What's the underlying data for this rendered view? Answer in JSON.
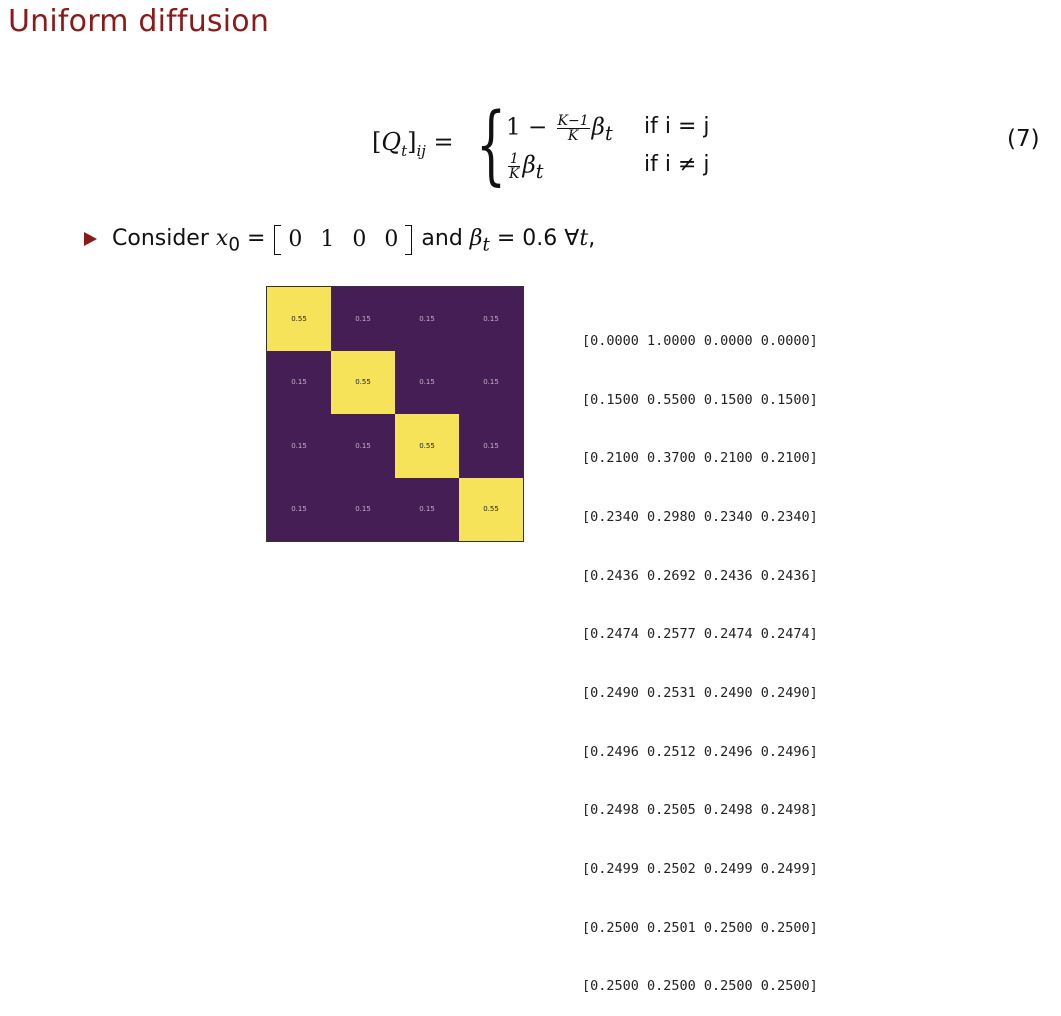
{
  "slide": {
    "title": "Uniform diffusion",
    "equation_number": "(7)",
    "title_color": "#8b1a1a"
  },
  "equation": {
    "lhs_bracket_open": "[",
    "lhs_Q": "Q",
    "lhs_t": "t",
    "lhs_bracket_close": "]",
    "lhs_ij": "ij",
    "equals": " = ",
    "case1_prefix": "1 − ",
    "case1_frac_num": "K−1",
    "case1_frac_den": "K",
    "case1_beta": "β",
    "case1_beta_sub": "t",
    "case2_frac_num": "1",
    "case2_frac_den": "K",
    "case2_beta": "β",
    "case2_beta_sub": "t",
    "cond1": "if i = j",
    "cond2": "if i ≠ j"
  },
  "bullet": {
    "prefix": "Consider ",
    "x": "x",
    "x_sub": "0",
    "equals": " = ",
    "vector": [
      "0",
      "1",
      "0",
      "0"
    ],
    "middle": " and ",
    "beta": "β",
    "beta_sub": "t",
    "suffix": " = 0.6 ∀",
    "t": "t",
    "end": ","
  },
  "heatmap": {
    "colors": {
      "high": "#f6e35a",
      "low": "#461e56"
    },
    "cells": [
      [
        "0.55",
        "0.15",
        "0.15",
        "0.15"
      ],
      [
        "0.15",
        "0.55",
        "0.15",
        "0.15"
      ],
      [
        "0.15",
        "0.15",
        "0.55",
        "0.15"
      ],
      [
        "0.15",
        "0.15",
        "0.15",
        "0.55"
      ]
    ]
  },
  "matrix_rows": [
    "[0.0000 1.0000 0.0000 0.0000]",
    "[0.1500 0.5500 0.1500 0.1500]",
    "[0.2100 0.3700 0.2100 0.2100]",
    "[0.2340 0.2980 0.2340 0.2340]",
    "[0.2436 0.2692 0.2436 0.2436]",
    "[0.2474 0.2577 0.2474 0.2474]",
    "[0.2490 0.2531 0.2490 0.2490]",
    "[0.2496 0.2512 0.2496 0.2496]",
    "[0.2498 0.2505 0.2498 0.2498]",
    "[0.2499 0.2502 0.2499 0.2499]",
    "[0.2500 0.2501 0.2500 0.2500]",
    "[0.2500 0.2500 0.2500 0.2500]"
  ]
}
